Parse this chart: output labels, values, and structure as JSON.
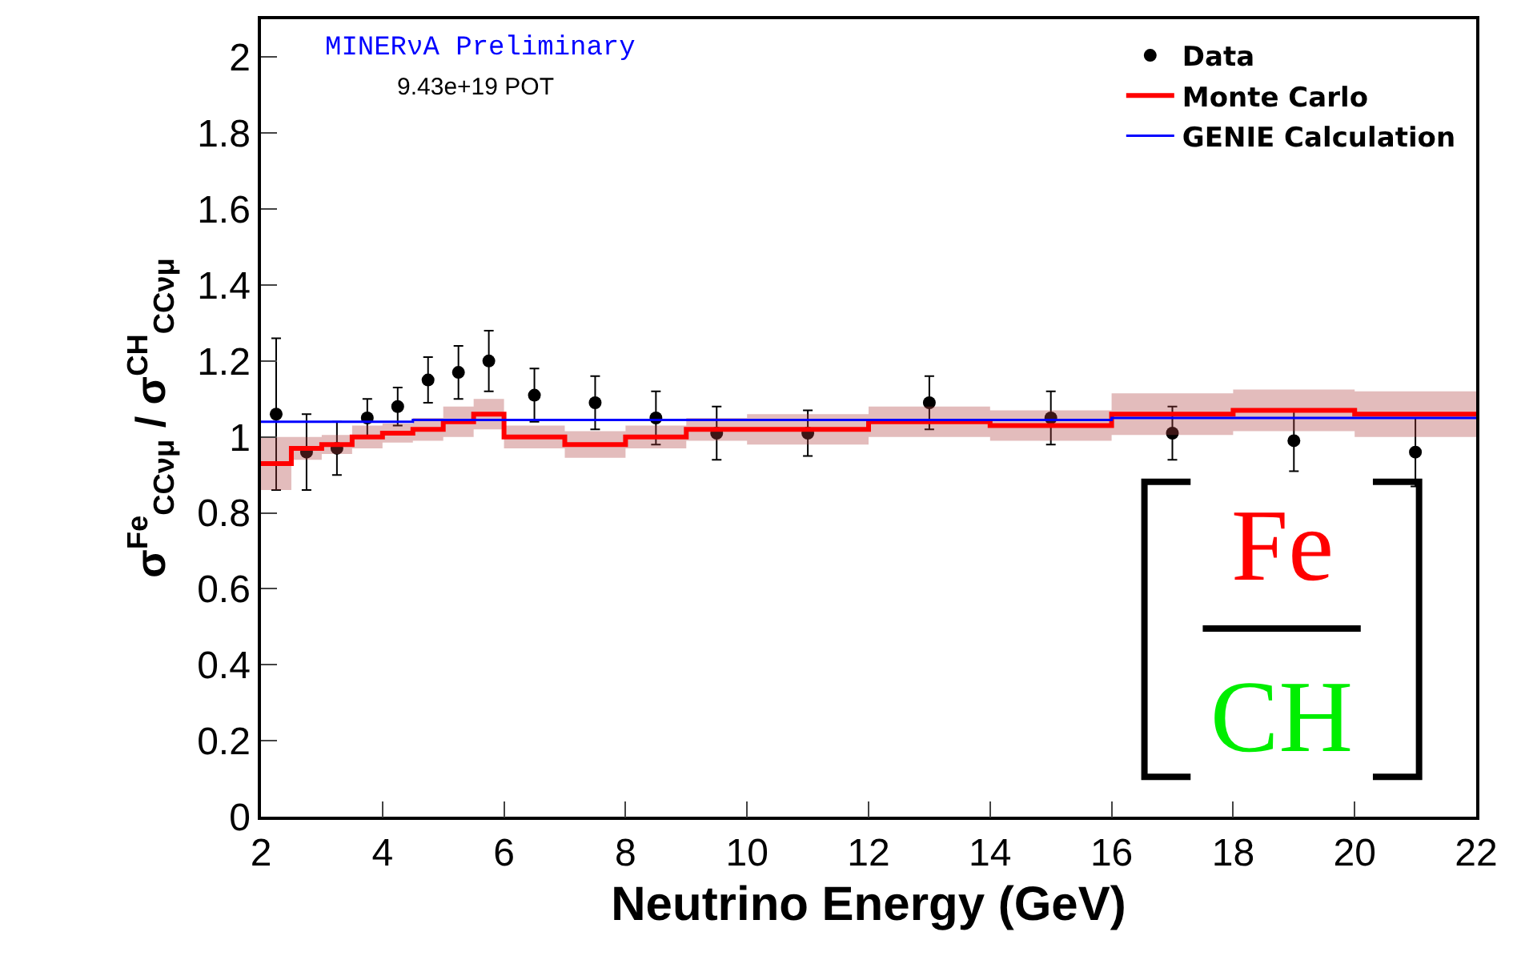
{
  "chart_data": {
    "type": "scatter",
    "xlabel": "Neutrino Energy (GeV)",
    "ylabel": "σ$^{Fe}$$_{CCνμ}$ / σ$^{CH}$$_{CCνμ}$",
    "xlim": [
      2,
      22
    ],
    "xticks": [
      2,
      4,
      6,
      8,
      10,
      12,
      14,
      16,
      18,
      20,
      22
    ],
    "ylim": [
      0,
      2.1
    ],
    "yticks": [
      0,
      0.2,
      0.4,
      0.6,
      0.8,
      1,
      1.2,
      1.4,
      1.6,
      1.8,
      2
    ],
    "grid": false,
    "legend": "top right",
    "annotations": [
      "MINERνA Preliminary",
      "9.43e+19 POT",
      "Fe",
      "CH"
    ],
    "series": [
      {
        "name": "Data",
        "marker": "circle",
        "color": "#000000",
        "x": [
          2.25,
          2.75,
          3.25,
          3.75,
          4.25,
          4.75,
          5.25,
          5.75,
          6.5,
          7.5,
          8.5,
          9.5,
          11,
          13,
          15,
          17,
          19,
          21
        ],
        "values": [
          1.06,
          0.96,
          0.97,
          1.05,
          1.08,
          1.15,
          1.17,
          1.2,
          1.11,
          1.09,
          1.05,
          1.01,
          1.01,
          1.09,
          1.05,
          1.01,
          0.99,
          0.96
        ],
        "errors": [
          0.2,
          0.1,
          0.07,
          0.05,
          0.05,
          0.06,
          0.07,
          0.08,
          0.07,
          0.07,
          0.07,
          0.07,
          0.06,
          0.07,
          0.07,
          0.07,
          0.08,
          0.09
        ]
      },
      {
        "name": "Monte Carlo",
        "type": "step",
        "color": "#ff0000",
        "x": [
          2,
          2.5,
          3,
          3.5,
          4,
          4.5,
          5,
          5.5,
          6,
          7,
          8,
          9,
          10,
          12,
          14,
          16,
          18,
          20,
          22
        ],
        "values": [
          0.93,
          0.97,
          0.98,
          1.0,
          1.01,
          1.02,
          1.04,
          1.06,
          1.0,
          0.98,
          1.0,
          1.02,
          1.02,
          1.04,
          1.03,
          1.06,
          1.07,
          1.06,
          1.06
        ],
        "lower": [
          0.86,
          0.94,
          0.955,
          0.97,
          0.985,
          0.99,
          1.0,
          1.02,
          0.97,
          0.945,
          0.97,
          0.99,
          0.98,
          1.0,
          0.99,
          1.005,
          1.015,
          1.0,
          1.0
        ],
        "upper": [
          1.0,
          1.0,
          1.005,
          1.03,
          1.035,
          1.05,
          1.08,
          1.1,
          1.03,
          1.015,
          1.03,
          1.05,
          1.06,
          1.08,
          1.07,
          1.115,
          1.125,
          1.12,
          1.12
        ]
      },
      {
        "name": "GENIE Calculation",
        "type": "step",
        "color": "#0000ff",
        "x": [
          2,
          4.5,
          12,
          16,
          22
        ],
        "values": [
          1.04,
          1.045,
          1.045,
          1.05,
          1.05
        ]
      }
    ]
  }
}
